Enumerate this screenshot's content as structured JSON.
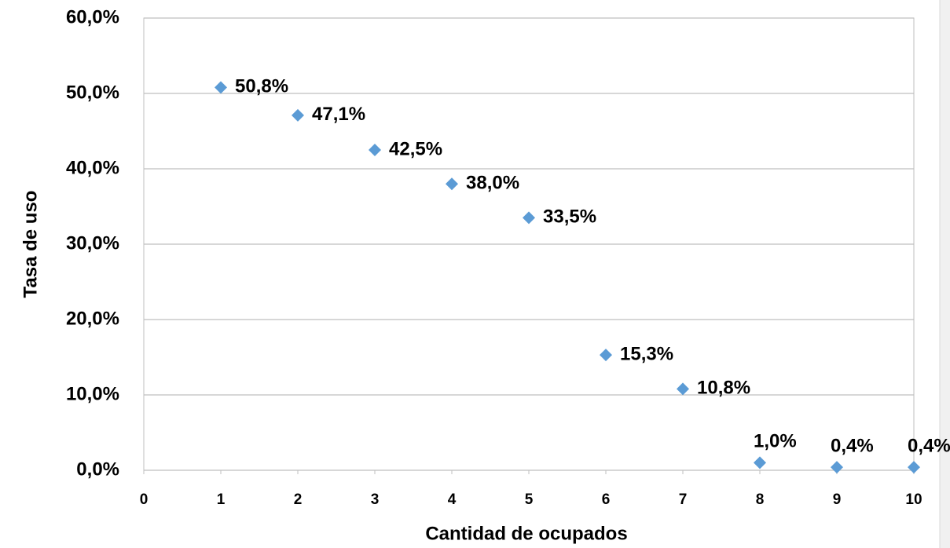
{
  "chart_data": {
    "type": "scatter",
    "x_label": "Cantidad de ocupados",
    "y_label": "Tasa de uso",
    "x": [
      1,
      2,
      3,
      4,
      5,
      6,
      7,
      8,
      9,
      10
    ],
    "series": [
      {
        "color": "#5b9bd5",
        "values": [
          50.8,
          47.1,
          42.5,
          38.0,
          33.5,
          15.3,
          10.8,
          1.0,
          0.4,
          0.4
        ],
        "value_labels": [
          "50,8%",
          "47,1%",
          "42,5%",
          "38,0%",
          "33,5%",
          "15,3%",
          "10,8%",
          "1,0%",
          "0,4%",
          "0,4%"
        ]
      }
    ],
    "xlim": [
      0,
      10
    ],
    "xticks": [
      0,
      1,
      2,
      3,
      4,
      5,
      6,
      7,
      8,
      9,
      10
    ],
    "ylim": [
      0,
      60
    ],
    "yticks": [
      {
        "value": 0,
        "label": "0,0%"
      },
      {
        "value": 10,
        "label": "10,0%"
      },
      {
        "value": 20,
        "label": "20,0%"
      },
      {
        "value": 30,
        "label": "30,0%"
      },
      {
        "value": 40,
        "label": "40,0%"
      },
      {
        "value": 50,
        "label": "50,0%"
      },
      {
        "value": 60,
        "label": "60,0%"
      }
    ],
    "grid": true
  }
}
